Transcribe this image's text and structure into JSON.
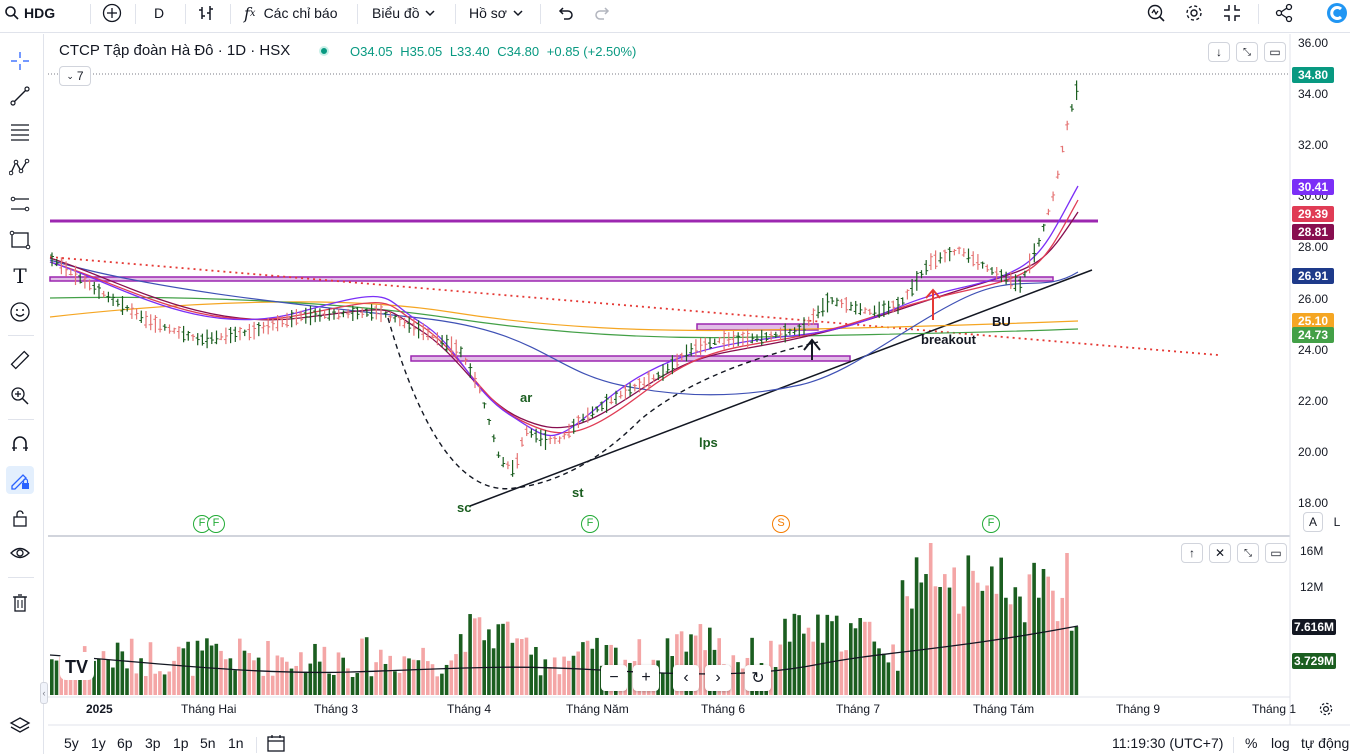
{
  "toolbar": {
    "symbol": "HDG",
    "interval": "D",
    "indicators_label": "Các chỉ báo",
    "chart_label": "Biểu đồ",
    "profile_label": "Hồ sơ"
  },
  "legend": {
    "title": "CTCP Tập đoàn Hà Đô · 1D · HSX",
    "open": "O34.05",
    "high": "H35.05",
    "low": "L33.40",
    "close": "C34.80",
    "change": "+0.85 (+2.50%)",
    "collapse_count": "7"
  },
  "price_axis": {
    "ticks": [
      "36.00",
      "34.00",
      "32.00",
      "30.00",
      "28.00",
      "26.00",
      "24.00",
      "22.00",
      "20.00",
      "18.00"
    ],
    "tags": [
      {
        "value": "34.80",
        "color": "#089981"
      },
      {
        "value": "30.41",
        "color": "#7b2ff7"
      },
      {
        "value": "29.39",
        "color": "#e03c55"
      },
      {
        "value": "28.81",
        "color": "#880e4f"
      },
      {
        "value": "26.91",
        "color": "#1e3a8a"
      },
      {
        "value": "25.10",
        "color": "#f5a623"
      },
      {
        "value": "24.73",
        "color": "#43a047"
      }
    ],
    "btn_auto": "A",
    "btn_log": "L"
  },
  "volume_axis": {
    "ticks": [
      "16M",
      "12M"
    ],
    "tags": [
      {
        "value": "7.616M",
        "color": "#131722"
      },
      {
        "value": "3.729M",
        "color": "#1b5e20"
      }
    ]
  },
  "time_axis": {
    "labels": [
      "2025",
      "Tháng Hai",
      "Tháng 3",
      "Tháng 4",
      "Tháng Năm",
      "Tháng 6",
      "Tháng 7",
      "Tháng Tám",
      "Tháng 9",
      "Tháng 1"
    ]
  },
  "annotations": {
    "sc": "sc",
    "ar": "ar",
    "st": "st",
    "lps": "lps",
    "breakout": "breakout",
    "bu": "BU"
  },
  "events": [
    {
      "label": "F",
      "color": "#22ab36"
    },
    {
      "label": "F",
      "color": "#22ab36"
    },
    {
      "label": "F",
      "color": "#22ab36"
    },
    {
      "label": "S",
      "color": "#f57c00"
    },
    {
      "label": "F",
      "color": "#22ab36"
    }
  ],
  "bottom_bar": {
    "ranges": [
      "5y",
      "1y",
      "6p",
      "3p",
      "1p",
      "5n",
      "1n"
    ],
    "clock": "11:19:30 (UTC+7)",
    "percent": "%",
    "log": "log",
    "auto": "tự động"
  },
  "colors": {
    "up": "#1b5e20",
    "down": "#e57373",
    "accent": "#2962ff",
    "resistance": "#9c27b0"
  }
}
